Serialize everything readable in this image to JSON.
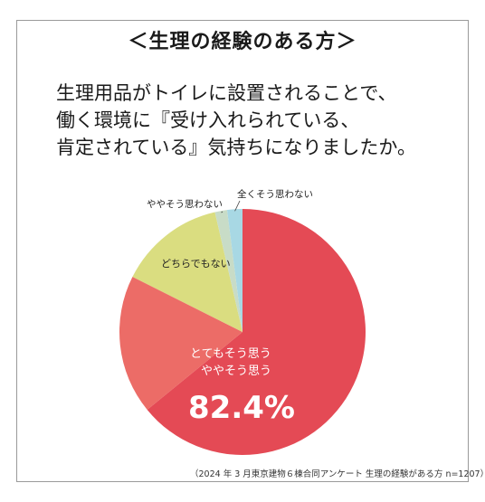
{
  "title": "＜生理の経験のある方＞",
  "question_lines": [
    "生理用品がトイレに設置されることで、",
    "働く環境に『受け入れられている、",
    "肯定されている』気持ちになりましたか。"
  ],
  "footnote": "（2024 年 3 月東京建物６棟合同アンケート 生理の経験がある方 n=1207）",
  "chart_data": {
    "type": "pie",
    "start": "12 o'clock, clockwise",
    "slices": [
      {
        "label": "とてもそう思う",
        "value": 64.1,
        "color": "#e44a55"
      },
      {
        "label": "ややそう思う",
        "value": 18.3,
        "color": "#ec6c67"
      },
      {
        "label": "どちらでもない",
        "value": 14.0,
        "color": "#dadd80"
      },
      {
        "label": "ややそう思わない",
        "value": 1.6,
        "color": "#c8dcc7"
      },
      {
        "label": "全くそう思わない",
        "value": 2.0,
        "color": "#a8d8e4"
      }
    ],
    "annotation": {
      "lines": [
        "とてもそう思う",
        "ややそう思う"
      ],
      "value": "82.4%"
    }
  }
}
